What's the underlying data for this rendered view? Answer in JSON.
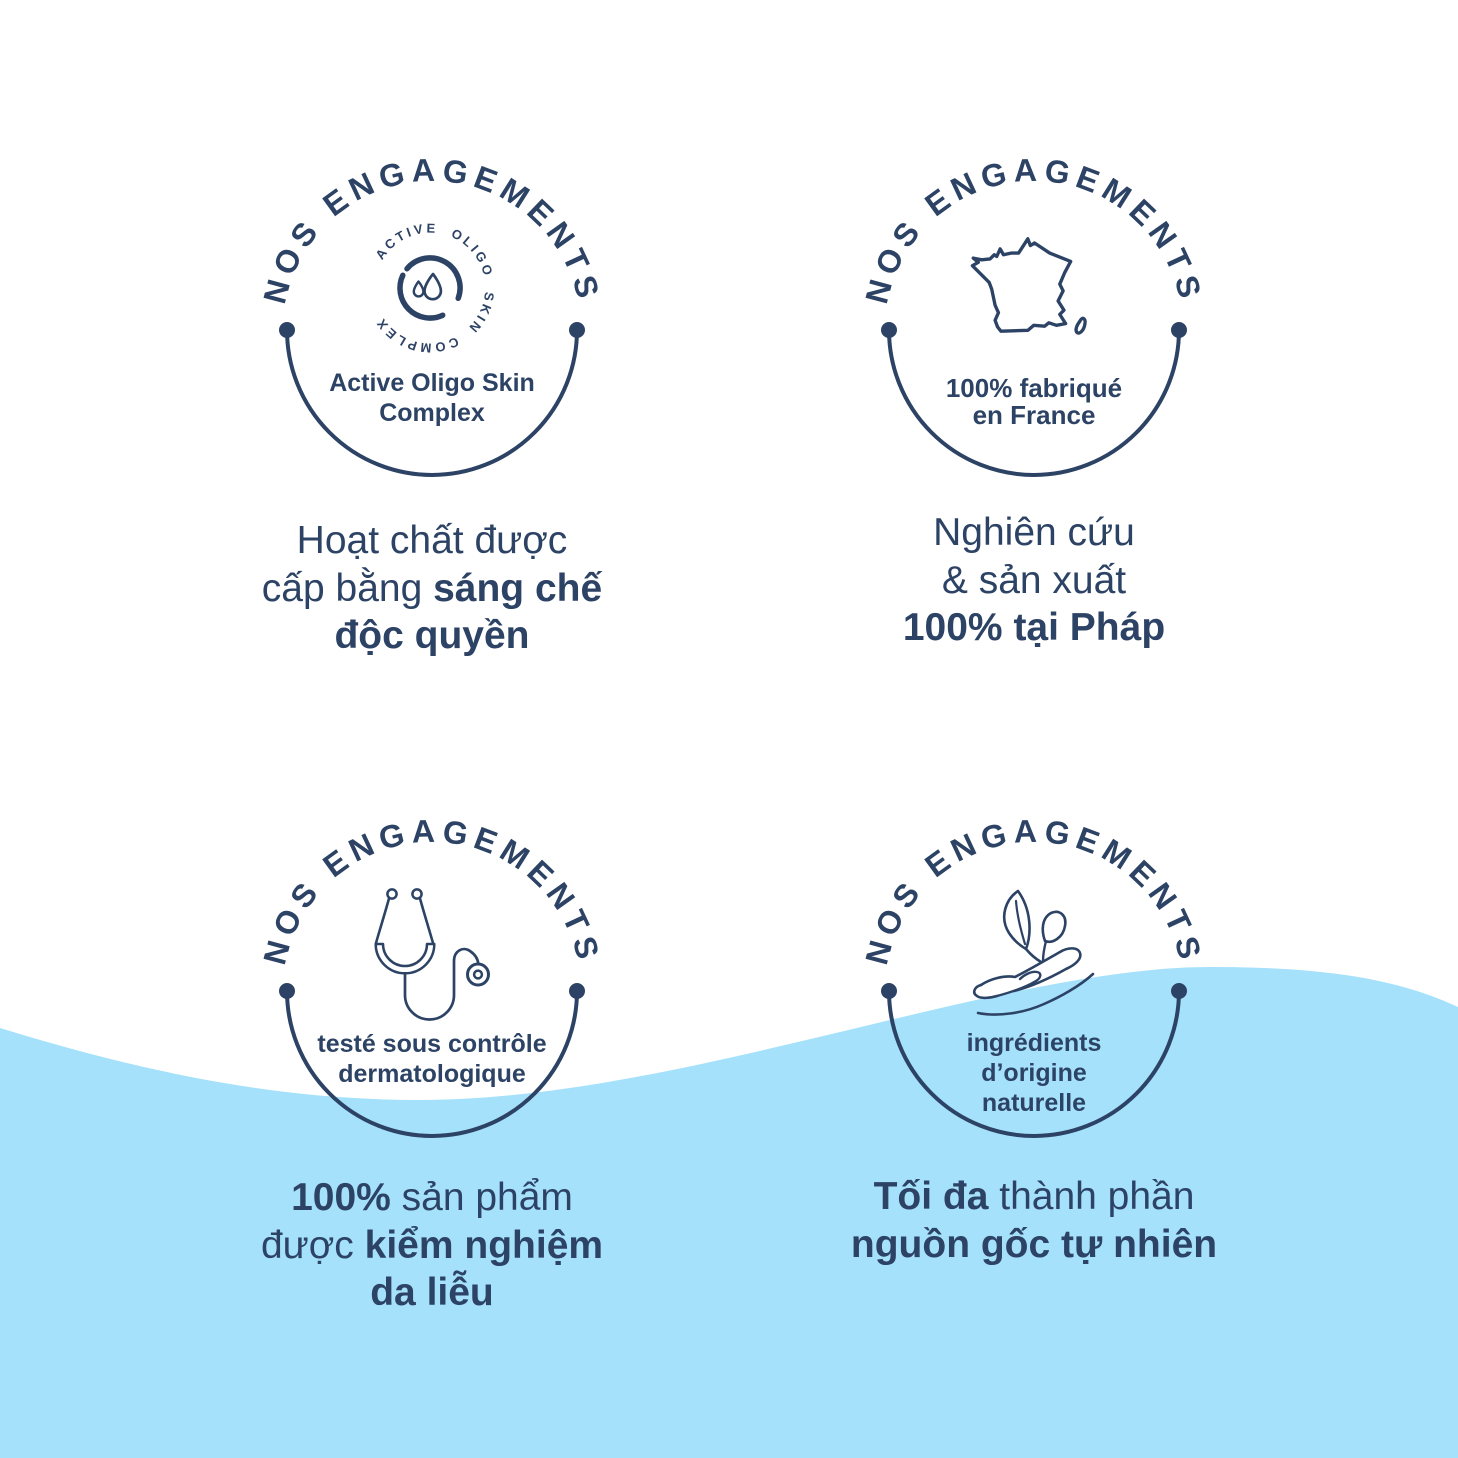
{
  "colors": {
    "navy": "#2d4365",
    "wave_blue": "#a5e1fb",
    "background": "#ffffff"
  },
  "badges": [
    {
      "arc_label": "NOS ENGAGEMENTS",
      "icon": "active-oligo-complex-icon",
      "ring_text": "ACTIVE OLIGO SKIN COMPLEX",
      "inner_lines": [
        "Active Oligo Skin",
        "Complex"
      ]
    },
    {
      "arc_label": "NOS ENGAGEMENTS",
      "icon": "france-map-icon",
      "inner_lines": [
        "100% fabriqué",
        "en France"
      ]
    },
    {
      "arc_label": "NOS ENGAGEMENTS",
      "icon": "stethoscope-icon",
      "inner_lines": [
        "testé sous contrôle",
        "dermatologique"
      ]
    },
    {
      "arc_label": "NOS ENGAGEMENTS",
      "icon": "hand-leaves-icon",
      "inner_lines": [
        "ingrédients",
        "d’origine",
        "naturelle"
      ]
    }
  ],
  "captions": [
    {
      "lines": [
        [
          {
            "t": "Hoạt chất được",
            "b": 0
          }
        ],
        [
          {
            "t": "cấp bằng ",
            "b": 0
          },
          {
            "t": "sáng chế",
            "b": 1
          }
        ],
        [
          {
            "t": "độc quyền",
            "b": 1
          }
        ]
      ]
    },
    {
      "lines": [
        [
          {
            "t": "Nghiên cứu",
            "b": 0
          }
        ],
        [
          {
            "t": "& sản xuất",
            "b": 0
          }
        ],
        [
          {
            "t": "100% tại Pháp",
            "b": 1
          }
        ]
      ]
    },
    {
      "lines": [
        [
          {
            "t": "100%",
            "b": 1
          },
          {
            "t": " sản phẩm",
            "b": 0
          }
        ],
        [
          {
            "t": "được ",
            "b": 0
          },
          {
            "t": "kiểm nghiệm",
            "b": 1
          }
        ],
        [
          {
            "t": "da liễu",
            "b": 1
          }
        ]
      ]
    },
    {
      "lines": [
        [
          {
            "t": "Tối đa",
            "b": 1
          },
          {
            "t": " thành phần",
            "b": 0
          }
        ],
        [
          {
            "t": "nguồn gốc tự nhiên",
            "b": 1
          }
        ]
      ]
    }
  ]
}
